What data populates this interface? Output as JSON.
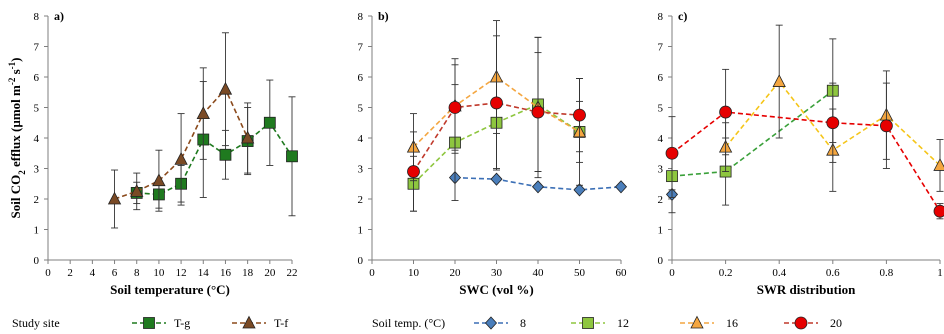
{
  "figure": {
    "ylabel": "Soil CO$_2$ efflux (µmol m$^{-2}$ s$^{-1}$)",
    "legend_left": {
      "title": "Study site",
      "entries": [
        "T-g",
        "T-f"
      ]
    },
    "legend_right": {
      "title": "Soil temp. (°C)",
      "entries": [
        "8",
        "12",
        "16",
        "20"
      ]
    },
    "colors": {
      "green": "#1f7a1f",
      "brown": "#8b4a1c",
      "blue": "#3b6fb6",
      "lightgreen": "#8ec63f",
      "orange": "#f4a640",
      "yellow": "#f5c518",
      "red": "#e60000",
      "darkred": "#c0392b"
    }
  },
  "chart_data": [
    {
      "type": "line",
      "panel_label": "a)",
      "xlabel": "Soil temperature (°C)",
      "ylabel": "Soil CO2 efflux (µmol m-2 s-1)",
      "xlim": [
        0,
        22
      ],
      "ylim": [
        0,
        8
      ],
      "xticks": [
        "0",
        "2",
        "4",
        "6",
        "8",
        "10",
        "12",
        "14",
        "16",
        "18",
        "20",
        "22"
      ],
      "yticks": [
        "0",
        "1",
        "2",
        "3",
        "4",
        "5",
        "6",
        "7",
        "8"
      ],
      "series": [
        {
          "name": "T-g",
          "marker": "square",
          "color": "#1f7a1f",
          "fill": "#1f7a1f",
          "line": "#1f7a1f",
          "x": [
            8,
            10,
            12,
            14,
            16,
            18,
            20,
            22
          ],
          "y": [
            2.2,
            2.15,
            2.5,
            3.95,
            3.45,
            3.9,
            4.5,
            3.4
          ],
          "err": [
            0.35,
            0.45,
            0.6,
            1.9,
            0.8,
            1.1,
            1.4,
            1.95
          ]
        },
        {
          "name": "T-f",
          "marker": "triangle",
          "color": "#5a2d0c",
          "fill": "#7a4a25",
          "line": "#8b4a1c",
          "x": [
            6,
            8,
            10,
            12,
            14,
            16,
            18
          ],
          "y": [
            2.0,
            2.25,
            2.6,
            3.3,
            4.8,
            5.6,
            4.0
          ],
          "err": [
            0.95,
            0.6,
            1.0,
            1.5,
            1.5,
            1.85,
            1.15
          ]
        }
      ]
    },
    {
      "type": "line",
      "panel_label": "b)",
      "xlabel": "SWC (vol %)",
      "xlim": [
        0,
        60
      ],
      "ylim": [
        0,
        8
      ],
      "xticks": [
        "0",
        "10",
        "20",
        "30",
        "40",
        "50",
        "60"
      ],
      "yticks": [
        "0",
        "1",
        "2",
        "3",
        "4",
        "5",
        "6",
        "7",
        "8"
      ],
      "series": [
        {
          "name": "8",
          "marker": "diamond",
          "fill": "#4a7ebb",
          "line": "#3b6fb6",
          "x": [
            20,
            30,
            40,
            50,
            60
          ],
          "y": [
            2.7,
            2.65,
            2.4,
            2.3,
            2.4
          ],
          "err": [
            0,
            0,
            0,
            0,
            0
          ]
        },
        {
          "name": "12",
          "marker": "square",
          "fill": "#8ec63f",
          "line": "#8ec63f",
          "x": [
            10,
            20,
            30,
            40,
            50
          ],
          "y": [
            2.5,
            3.85,
            4.5,
            5.1,
            4.2
          ],
          "err": [
            0.9,
            1.9,
            1.5,
            2.2,
            1.0
          ]
        },
        {
          "name": "16",
          "marker": "triangle",
          "fill": "#f4a640",
          "line": "#f4a640",
          "x": [
            10,
            20,
            30,
            40,
            50
          ],
          "y": [
            3.7,
            5.05,
            6.0,
            5.0,
            4.2
          ],
          "err": [
            1.1,
            1.55,
            1.85,
            2.3,
            1.75
          ]
        },
        {
          "name": "20",
          "marker": "circle",
          "fill": "#e60000",
          "line": "#c0392b",
          "x": [
            10,
            20,
            30,
            40,
            50
          ],
          "y": [
            2.9,
            5.0,
            5.15,
            4.85,
            4.75
          ],
          "err": [
            1.3,
            1.4,
            2.2,
            1.95,
            1.2
          ]
        }
      ]
    },
    {
      "type": "line",
      "panel_label": "c)",
      "xlabel": "SWR distribution",
      "xlim": [
        0,
        1
      ],
      "ylim": [
        0,
        8
      ],
      "xticks": [
        "0",
        "0.2",
        "0.4",
        "0.6",
        "0.8",
        "1"
      ],
      "yticks": [
        "0",
        "1",
        "2",
        "3",
        "4",
        "5",
        "6",
        "7",
        "8"
      ],
      "series": [
        {
          "name": "8",
          "marker": "diamond",
          "fill": "#4a7ebb",
          "line": "#3b6fb6",
          "x": [
            0
          ],
          "y": [
            2.15
          ],
          "err": [
            0.6
          ]
        },
        {
          "name": "12",
          "marker": "square",
          "fill": "#8ec63f",
          "line": "#3aa03a",
          "x": [
            0,
            0.2,
            0.6
          ],
          "y": [
            2.75,
            2.9,
            5.55
          ],
          "err": [
            0.7,
            1.1,
            1.7
          ]
        },
        {
          "name": "16",
          "marker": "triangle",
          "fill": "#f4a640",
          "line": "#f5c518",
          "x": [
            0.2,
            0.4,
            0.6,
            0.8,
            1.0
          ],
          "y": [
            3.7,
            5.85,
            3.6,
            4.75,
            3.1
          ],
          "err": [
            0.8,
            1.85,
            1.35,
            1.45,
            0.85
          ]
        },
        {
          "name": "20",
          "marker": "circle",
          "fill": "#e60000",
          "line": "#e60000",
          "x": [
            0,
            0.2,
            0.6,
            0.8,
            1.0
          ],
          "y": [
            3.5,
            4.85,
            4.5,
            4.4,
            1.6
          ],
          "err": [
            1.2,
            1.4,
            1.3,
            1.4,
            0.25
          ]
        }
      ]
    }
  ]
}
